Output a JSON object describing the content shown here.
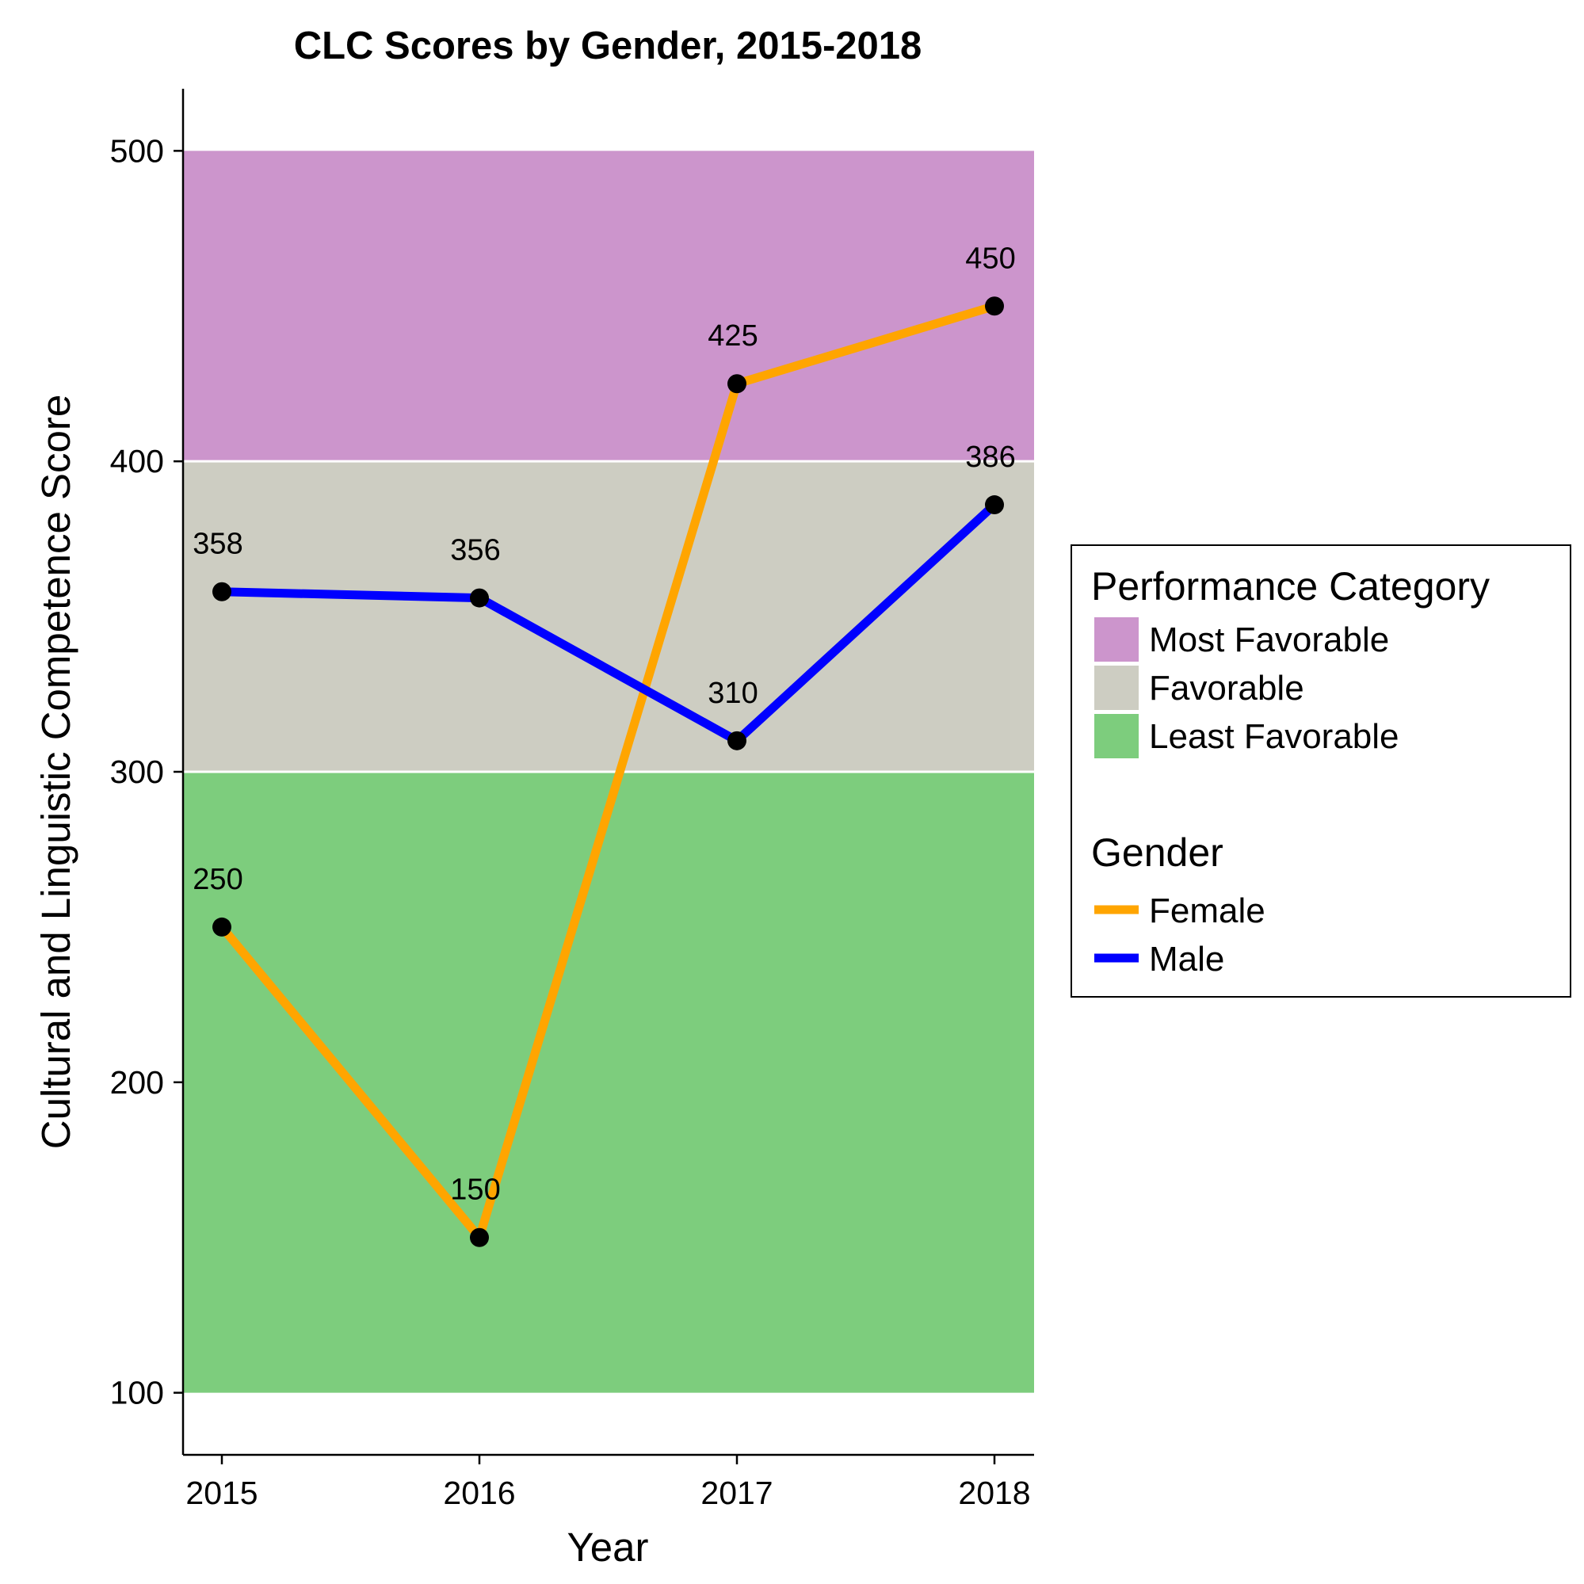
{
  "chart_data": {
    "type": "line",
    "title": "CLC Scores by Gender, 2015-2018",
    "xlabel": "Year",
    "ylabel": "Cultural and Linguistic Competence Score",
    "categories": [
      "2015",
      "2016",
      "2017",
      "2018"
    ],
    "ylim": [
      80,
      520
    ],
    "y_ticks": [
      100,
      200,
      300,
      400,
      500
    ],
    "y_tick_labels": [
      "100",
      "200",
      "300",
      "400",
      "500"
    ],
    "grid": false,
    "series": [
      {
        "name": "Female",
        "color": "#FFA500",
        "values": [
          250,
          150,
          425,
          450
        ],
        "labels": [
          "250",
          "150",
          "425",
          "450"
        ]
      },
      {
        "name": "Male",
        "color": "#0000FF",
        "values": [
          358,
          356,
          310,
          386
        ],
        "labels": [
          "358",
          "356",
          "310",
          "386"
        ]
      }
    ],
    "bands": [
      {
        "name": "Most Favorable",
        "from": 400,
        "to": 500,
        "color": "#CC95CC"
      },
      {
        "name": "Favorable",
        "from": 300,
        "to": 400,
        "color": "#CDCDC2"
      },
      {
        "name": "Least Favorable",
        "from": 100,
        "to": 300,
        "color": "#7DCD7D"
      }
    ],
    "legend": {
      "placement": "right",
      "band_title": "Performance Category",
      "series_title": "Gender"
    },
    "point_color": "#000000"
  }
}
